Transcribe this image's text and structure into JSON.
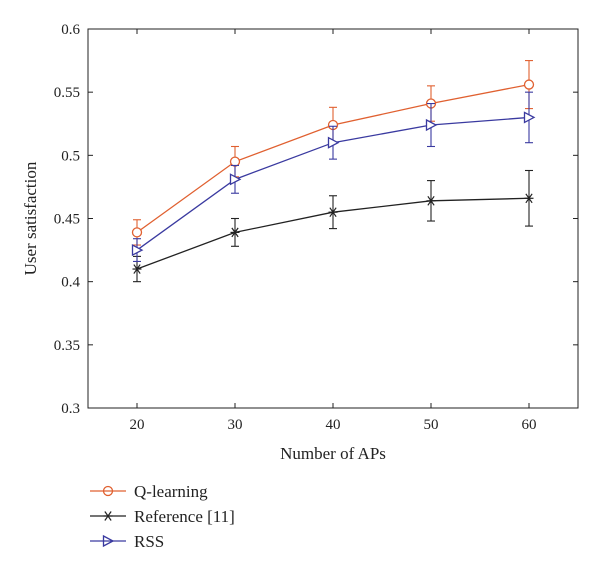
{
  "chart_data": {
    "type": "line",
    "title": "",
    "xlabel": "Number of APs",
    "ylabel": "User satisfaction",
    "x": [
      20,
      30,
      40,
      50,
      60
    ],
    "xlim": [
      15,
      65
    ],
    "ylim": [
      0.3,
      0.6
    ],
    "xticks": [
      "20",
      "30",
      "40",
      "50",
      "60"
    ],
    "yticks": [
      "0.3",
      "0.35",
      "0.4",
      "0.45",
      "0.5",
      "0.55",
      "0.6"
    ],
    "grid": false,
    "legend_position": "below",
    "series": [
      {
        "name": "Q-learning",
        "marker": "circle",
        "color": "#e06030",
        "values": [
          0.439,
          0.495,
          0.524,
          0.541,
          0.556
        ],
        "error": [
          0.01,
          0.012,
          0.014,
          0.014,
          0.019
        ]
      },
      {
        "name": "Reference [11]",
        "marker": "asterisk",
        "color": "#222222",
        "values": [
          0.41,
          0.439,
          0.455,
          0.464,
          0.466
        ],
        "error": [
          0.01,
          0.011,
          0.013,
          0.016,
          0.022
        ]
      },
      {
        "name": "RSS",
        "marker": "triangle-right",
        "color": "#3a3aa0",
        "values": [
          0.425,
          0.481,
          0.51,
          0.524,
          0.53
        ],
        "error": [
          0.009,
          0.011,
          0.013,
          0.017,
          0.02
        ]
      }
    ]
  }
}
